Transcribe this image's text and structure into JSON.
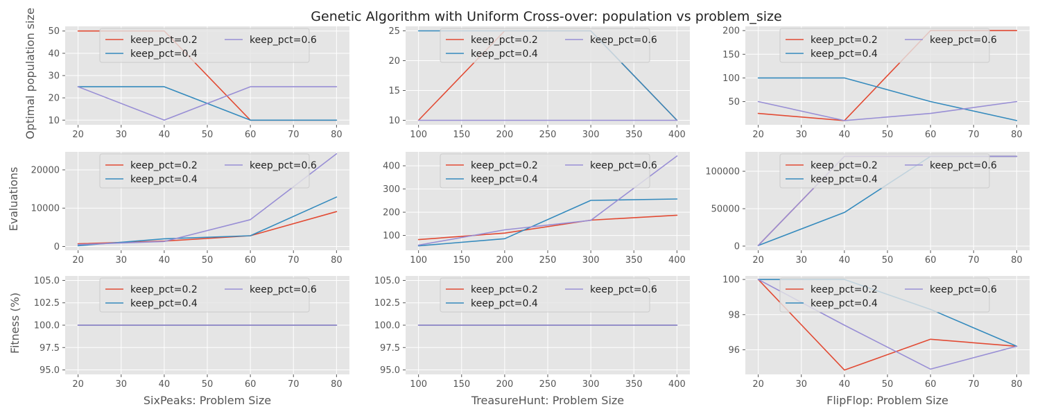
{
  "figure": {
    "title": "Genetic Algorithm with Uniform Cross-over: population vs problem_size"
  },
  "colors": {
    "keep_pct=0.2": "#E24A33",
    "keep_pct=0.4": "#348ABD",
    "keep_pct=0.6": "#988ED5",
    "panel_bg": "#E5E5E5",
    "grid": "#FFFFFF"
  },
  "chart_data": [
    {
      "type": "line",
      "xlabel": "",
      "ylabel": "Optimal population size",
      "xlim": [
        17,
        83
      ],
      "ylim": [
        7.9,
        52.1
      ],
      "xticks": [
        20,
        30,
        40,
        50,
        60,
        70,
        80
      ],
      "yticks": [
        10,
        20,
        30,
        40,
        50
      ],
      "x": [
        20,
        40,
        60,
        80
      ],
      "legend": "upper center",
      "series": [
        {
          "name": "keep_pct=0.2",
          "values": [
            50,
            50,
            10,
            10
          ]
        },
        {
          "name": "keep_pct=0.4",
          "values": [
            25,
            25,
            10,
            10
          ]
        },
        {
          "name": "keep_pct=0.6",
          "values": [
            25,
            10,
            25,
            25
          ]
        }
      ]
    },
    {
      "type": "line",
      "xlabel": "",
      "ylabel": "",
      "xlim": [
        85,
        415
      ],
      "ylim": [
        9.25,
        25.75
      ],
      "xticks": [
        100,
        150,
        200,
        250,
        300,
        350,
        400
      ],
      "yticks": [
        10,
        15,
        20,
        25
      ],
      "x": [
        100,
        200,
        300,
        400
      ],
      "legend": "upper center",
      "series": [
        {
          "name": "keep_pct=0.2",
          "values": [
            10,
            25,
            25,
            10
          ]
        },
        {
          "name": "keep_pct=0.4",
          "values": [
            25,
            25,
            25,
            10
          ]
        },
        {
          "name": "keep_pct=0.6",
          "values": [
            10,
            10,
            10,
            10
          ]
        }
      ]
    },
    {
      "type": "line",
      "xlabel": "",
      "ylabel": "",
      "xlim": [
        17,
        83
      ],
      "ylim": [
        1.0,
        209.0
      ],
      "xticks": [
        20,
        30,
        40,
        50,
        60,
        70,
        80
      ],
      "yticks": [
        50,
        100,
        150,
        200
      ],
      "x": [
        20,
        40,
        60,
        80
      ],
      "legend": "upper center",
      "series": [
        {
          "name": "keep_pct=0.2",
          "values": [
            25,
            10,
            200,
            200
          ]
        },
        {
          "name": "keep_pct=0.4",
          "values": [
            100,
            100,
            50,
            10
          ]
        },
        {
          "name": "keep_pct=0.6",
          "values": [
            50,
            10,
            25,
            50
          ]
        }
      ]
    },
    {
      "type": "line",
      "xlabel": "",
      "ylabel": "Evaluations",
      "xlim": [
        17,
        83
      ],
      "ylim": [
        -1000,
        24700
      ],
      "xticks": [
        20,
        30,
        40,
        50,
        60,
        70,
        80
      ],
      "yticks": [
        0,
        10000,
        20000
      ],
      "x": [
        20,
        40,
        60,
        80
      ],
      "legend": "upper center",
      "series": [
        {
          "name": "keep_pct=0.2",
          "values": [
            700,
            1400,
            2800,
            9100
          ]
        },
        {
          "name": "keep_pct=0.4",
          "values": [
            200,
            2000,
            2800,
            12900
          ]
        },
        {
          "name": "keep_pct=0.6",
          "values": [
            500,
            1300,
            7000,
            24200
          ]
        }
      ]
    },
    {
      "type": "line",
      "xlabel": "",
      "ylabel": "",
      "xlim": [
        85,
        415
      ],
      "ylim": [
        36,
        460
      ],
      "xticks": [
        100,
        150,
        200,
        250,
        300,
        350,
        400
      ],
      "yticks": [
        100,
        200,
        300,
        400
      ],
      "x": [
        100,
        200,
        300,
        400
      ],
      "legend": "upper center",
      "series": [
        {
          "name": "keep_pct=0.2",
          "values": [
            82,
            110,
            166,
            187
          ]
        },
        {
          "name": "keep_pct=0.4",
          "values": [
            55,
            86,
            251,
            257
          ]
        },
        {
          "name": "keep_pct=0.6",
          "values": [
            58,
            124,
            165,
            442
          ]
        }
      ]
    },
    {
      "type": "line",
      "xlabel": "",
      "ylabel": "",
      "xlim": [
        17,
        83
      ],
      "ylim": [
        -5600,
        126000
      ],
      "xticks": [
        20,
        30,
        40,
        50,
        60,
        70,
        80
      ],
      "yticks": [
        0,
        50000,
        100000
      ],
      "x": [
        20,
        40,
        60,
        80
      ],
      "legend": "upper center",
      "series": [
        {
          "name": "keep_pct=0.2",
          "values": [
            800,
            120000,
            120000,
            120000
          ]
        },
        {
          "name": "keep_pct=0.4",
          "values": [
            800,
            45000,
            120000,
            120000
          ]
        },
        {
          "name": "keep_pct=0.6",
          "values": [
            800,
            120000,
            120000,
            120000
          ]
        }
      ]
    },
    {
      "type": "line",
      "xlabel": "SixPeaks: Problem Size",
      "ylabel": "Fitness (%)",
      "xlim": [
        17,
        83
      ],
      "ylim": [
        94.5,
        105.5
      ],
      "xticks": [
        20,
        30,
        40,
        50,
        60,
        70,
        80
      ],
      "yticks": [
        95.0,
        97.5,
        100.0,
        102.5,
        105.0
      ],
      "yticklabels": [
        "95.0",
        "97.5",
        "100.0",
        "102.5",
        "105.0"
      ],
      "x": [
        20,
        40,
        60,
        80
      ],
      "legend": "upper center",
      "series": [
        {
          "name": "keep_pct=0.2",
          "values": [
            100,
            100,
            100,
            100
          ]
        },
        {
          "name": "keep_pct=0.4",
          "values": [
            100,
            100,
            100,
            100
          ]
        },
        {
          "name": "keep_pct=0.6",
          "values": [
            100,
            100,
            100,
            100
          ]
        }
      ]
    },
    {
      "type": "line",
      "xlabel": "TreasureHunt: Problem Size",
      "ylabel": "",
      "xlim": [
        85,
        415
      ],
      "ylim": [
        94.5,
        105.5
      ],
      "xticks": [
        100,
        150,
        200,
        250,
        300,
        350,
        400
      ],
      "yticks": [
        95.0,
        97.5,
        100.0,
        102.5,
        105.0
      ],
      "yticklabels": [
        "95.0",
        "97.5",
        "100.0",
        "102.5",
        "105.0"
      ],
      "x": [
        100,
        200,
        300,
        400
      ],
      "legend": "upper center",
      "series": [
        {
          "name": "keep_pct=0.2",
          "values": [
            100,
            100,
            100,
            100
          ]
        },
        {
          "name": "keep_pct=0.4",
          "values": [
            100,
            100,
            100,
            100
          ]
        },
        {
          "name": "keep_pct=0.6",
          "values": [
            100,
            100,
            100,
            100
          ]
        }
      ]
    },
    {
      "type": "line",
      "xlabel": "FlipFlop: Problem Size",
      "ylabel": "",
      "xlim": [
        17,
        83
      ],
      "ylim": [
        94.6,
        100.2
      ],
      "xticks": [
        20,
        30,
        40,
        50,
        60,
        70,
        80
      ],
      "yticks": [
        96,
        98,
        100
      ],
      "x": [
        20,
        40,
        60,
        80
      ],
      "legend": "upper center",
      "series": [
        {
          "name": "keep_pct=0.2",
          "values": [
            100,
            94.85,
            96.6,
            96.2
          ]
        },
        {
          "name": "keep_pct=0.4",
          "values": [
            100,
            100,
            98.3,
            96.2
          ]
        },
        {
          "name": "keep_pct=0.6",
          "values": [
            100,
            97.4,
            94.9,
            96.2
          ]
        }
      ]
    }
  ]
}
